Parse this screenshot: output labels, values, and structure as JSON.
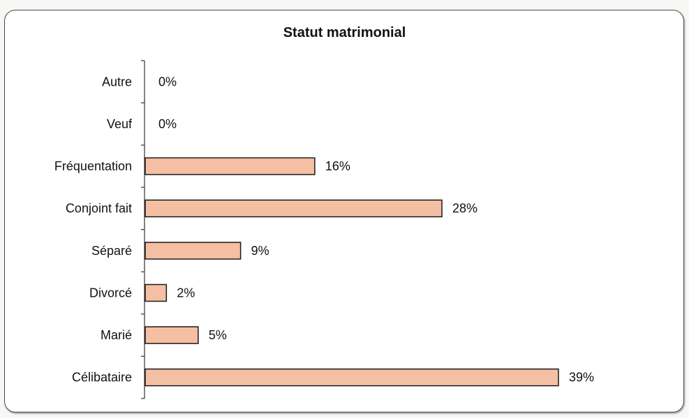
{
  "chart_data": {
    "type": "bar",
    "orientation": "horizontal",
    "title": "Statut matrimonial",
    "xlabel": "",
    "ylabel": "",
    "categories": [
      "Autre",
      "Veuf",
      "Fréquentation",
      "Conjoint fait",
      "Séparé",
      "Divorcé",
      "Marié",
      "Célibataire"
    ],
    "values": [
      0,
      0,
      16,
      28,
      9,
      2,
      5,
      39
    ],
    "value_labels": [
      "0%",
      "0%",
      "16%",
      "28%",
      "9%",
      "2%",
      "5%",
      "39%"
    ],
    "unit": "%",
    "xlim": [
      0,
      39
    ],
    "grid": false,
    "legend": "none",
    "bar_color": "#f5bfa3",
    "bar_stroke": "#1a1a1a"
  }
}
